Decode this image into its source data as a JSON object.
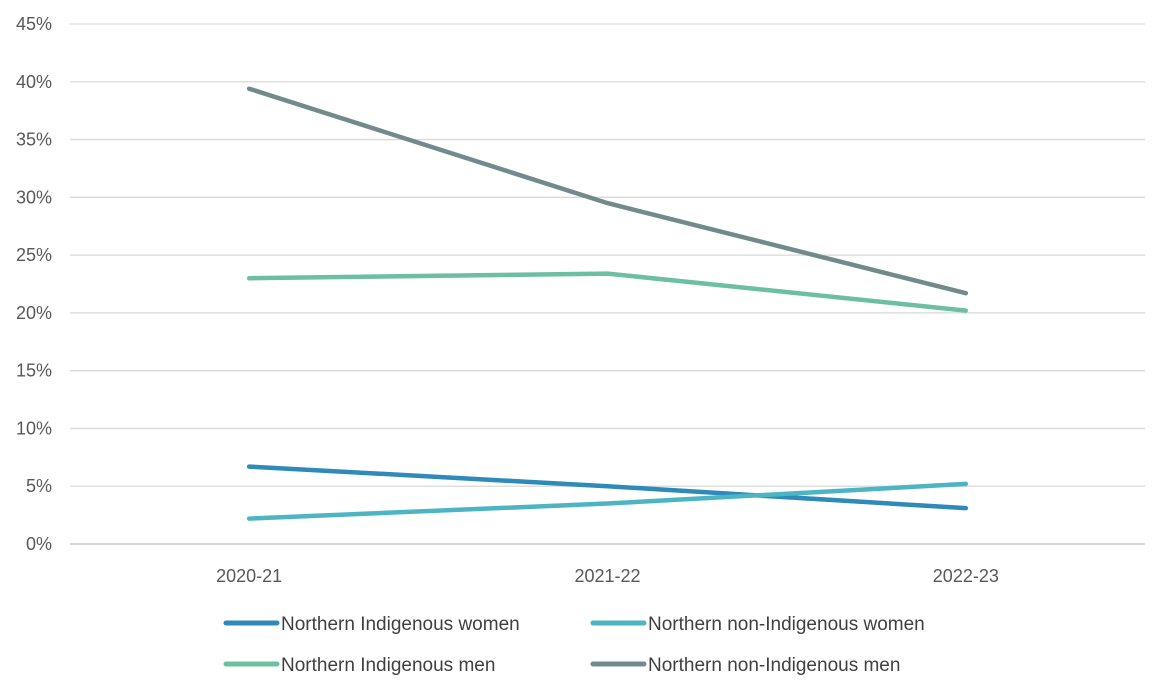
{
  "chart_data": {
    "type": "line",
    "title": "",
    "xlabel": "",
    "ylabel": "",
    "categories": [
      "2020-21",
      "2021-22",
      "2022-23"
    ],
    "ylim": [
      0,
      45
    ],
    "yticks": [
      0,
      5,
      10,
      15,
      20,
      25,
      30,
      35,
      40,
      45
    ],
    "ytick_labels": [
      "0%",
      "5%",
      "10%",
      "15%",
      "20%",
      "25%",
      "30%",
      "35%",
      "40%",
      "45%"
    ],
    "grid": true,
    "legend_position": "bottom",
    "series": [
      {
        "name": "Northern Indigenous women",
        "color": "#2e8ab8",
        "values": [
          6.7,
          5.0,
          3.1
        ]
      },
      {
        "name": "Northern non-Indigenous women",
        "color": "#4db4c4",
        "values": [
          2.2,
          3.5,
          5.2
        ]
      },
      {
        "name": "Northern Indigenous men",
        "color": "#6dbfa2",
        "values": [
          23.0,
          23.4,
          20.2
        ]
      },
      {
        "name": "Northern non-Indigenous men",
        "color": "#728a8c",
        "values": [
          39.4,
          29.5,
          21.7
        ]
      }
    ]
  }
}
